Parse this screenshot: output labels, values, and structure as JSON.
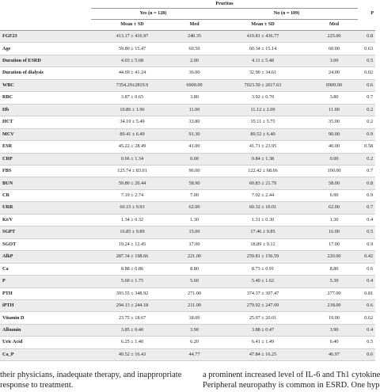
{
  "table": {
    "group_title": "Pruritus",
    "yes_label": "Yes (n = 128)",
    "no_label": "No (n = 109)",
    "p_label": "P",
    "sub_headers": [
      "Mean ± SD",
      "Med",
      "Mean ± SD",
      "Med"
    ],
    "rows": [
      {
        "label": "FGF23",
        "yes_mean": "413.17 ± 416.97",
        "yes_med": "240.35",
        "no_mean": "410.81 ± 436.77",
        "no_med": "225.00",
        "p": "0.8"
      },
      {
        "label": "Age",
        "yes_mean": "59.80 ± 15.47",
        "yes_med": "60.50",
        "no_mean": "60.34 ± 15.14",
        "no_med": "60.00",
        "p": "0.63"
      },
      {
        "label": "Duration of ESRD",
        "yes_mean": "4.03 ± 5.68",
        "yes_med": "2.00",
        "no_mean": "4.11 ± 5.48",
        "no_med": "3.00",
        "p": "0.5"
      },
      {
        "label": "Duration of dialysis",
        "yes_mean": "44.69 ± 41.24",
        "yes_med": "36.00",
        "no_mean": "32.90 ± 34.61",
        "no_med": "24.00",
        "p": "0.02"
      },
      {
        "label": "WBC",
        "yes_mean": "7354.29±2819.9",
        "yes_med": "6900.00",
        "no_mean": "7023.59 ± 2017.63",
        "no_med": "6900.00",
        "p": "0.6"
      },
      {
        "label": "RBC",
        "yes_mean": "3.87 ± 0.65",
        "yes_med": "3.80",
        "no_mean": "3.92 ± 0.70",
        "no_med": "3.80",
        "p": "0.7"
      },
      {
        "label": "Hb",
        "yes_mean": "10.86 ± 1.96",
        "yes_med": "11.00",
        "no_mean": "11.12 ± 2.00",
        "no_med": "11.00",
        "p": "0.2"
      },
      {
        "label": "HCT",
        "yes_mean": "34.19 ± 5.49",
        "yes_med": "33.80",
        "no_mean": "35.11 ± 5.75",
        "no_med": "35.00",
        "p": "0.2"
      },
      {
        "label": "MCV",
        "yes_mean": "89.41 ± 6.49",
        "yes_med": "91.30",
        "no_mean": "89.52 ± 6.40",
        "no_med": "90.00",
        "p": "0.9"
      },
      {
        "label": "ESR",
        "yes_mean": "45.22 ± 28.49",
        "yes_med": "41.00",
        "no_mean": "41.71 ± 23.95",
        "no_med": "40.00",
        "p": "0.58"
      },
      {
        "label": "CRP",
        "yes_mean": "0.66 ± 1.34",
        "yes_med": "0.00",
        "no_mean": "0.84 ± 1.38",
        "no_med": "0.00",
        "p": "0.2"
      },
      {
        "label": "FBS",
        "yes_mean": "125.74 ± 83.01",
        "yes_med": "96.00",
        "no_mean": "122.42 ± 68.66",
        "no_med": "100.00",
        "p": "0.7"
      },
      {
        "label": "BUN",
        "yes_mean": "59.80 ± 20.44",
        "yes_med": "58.90",
        "no_mean": "60.83 ± 21.79",
        "no_med": "58.00",
        "p": "0.8"
      },
      {
        "label": "CR",
        "yes_mean": "7.19 ± 2.74",
        "yes_med": "7.00",
        "no_mean": "7.02 ± 2.44",
        "no_med": "6.90",
        "p": "0.9"
      },
      {
        "label": "URR",
        "yes_mean": "60.15 ± 9.93",
        "yes_med": "62.00",
        "no_mean": "60.32 ± 10.01",
        "no_med": "62.00",
        "p": "0.7"
      },
      {
        "label": "Kt/V",
        "yes_mean": "1.34 ± 0.32",
        "yes_med": "1.30",
        "no_mean": "1.31 ± 0.30",
        "no_med": "1.30",
        "p": "0.4"
      },
      {
        "label": "SGPT",
        "yes_mean": "16.85 ± 9.89",
        "yes_med": "15.00",
        "no_mean": "17.46 ± 9.85",
        "no_med": "16.00",
        "p": "0.5"
      },
      {
        "label": "SGOT",
        "yes_mean": "19.24 ± 12.45",
        "yes_med": "17.00",
        "no_mean": "18.89 ± 9.12",
        "no_med": "17.00",
        "p": "0.9"
      },
      {
        "label": "AlkP",
        "yes_mean": "287.34 ± 198.66",
        "yes_med": "221.00",
        "no_mean": "259.81 ± 156.59",
        "no_med": "220.00",
        "p": "0.42"
      },
      {
        "label": "Ca",
        "yes_mean": "8.88 ± 0.86",
        "yes_med": "8.80",
        "no_mean": "8.73 ± 0.91",
        "no_med": "8.80",
        "p": "0.6"
      },
      {
        "label": "P",
        "yes_mean": "5.60 ± 1.75",
        "yes_med": "5.60",
        "no_mean": "5.40 ± 1.62",
        "no_med": "5.30",
        "p": "0.4"
      },
      {
        "label": "PTH",
        "yes_mean": "393.55 ± 348.92",
        "yes_med": "271.00",
        "no_mean": "374.37 ± 307.47",
        "no_med": "277.00",
        "p": "0.81"
      },
      {
        "label": "iPTH",
        "yes_mean": "294.13 ± 244.18",
        "yes_med": "211.00",
        "no_mean": "279.92 ± 247.69",
        "no_med": "218.00",
        "p": "0.6"
      },
      {
        "label": "Vitamin D",
        "yes_mean": "23.75 ± 18.67",
        "yes_med": "18.00",
        "no_mean": "25.07 ± 20.01",
        "no_med": "19.00",
        "p": "0.62"
      },
      {
        "label": "Albumin",
        "yes_mean": "3.85 ± 0.40",
        "yes_med": "3.90",
        "no_mean": "3.88 ± 0.47",
        "no_med": "3.90",
        "p": "0.4"
      },
      {
        "label": "Uric Acid",
        "yes_mean": "6.25 ± 1.40",
        "yes_med": "6.20",
        "no_mean": "6.41 ± 1.49",
        "no_med": "6.40",
        "p": "0.5"
      },
      {
        "label": "Ca_P",
        "yes_mean": "49.52 ± 16.43",
        "yes_med": "44.77",
        "no_mean": "47.84 ± 16.25",
        "no_med": "46.97",
        "p": "0.6"
      }
    ]
  },
  "text": {
    "left_lines": [
      "their physicians, inadequate therapy, and inappropriate",
      "response to treatment."
    ],
    "right_lines": [
      "a prominent increased level of IL-6 and Th1 cytokine",
      "Peripheral neuropathy is common in ESRD. One hyp"
    ]
  }
}
